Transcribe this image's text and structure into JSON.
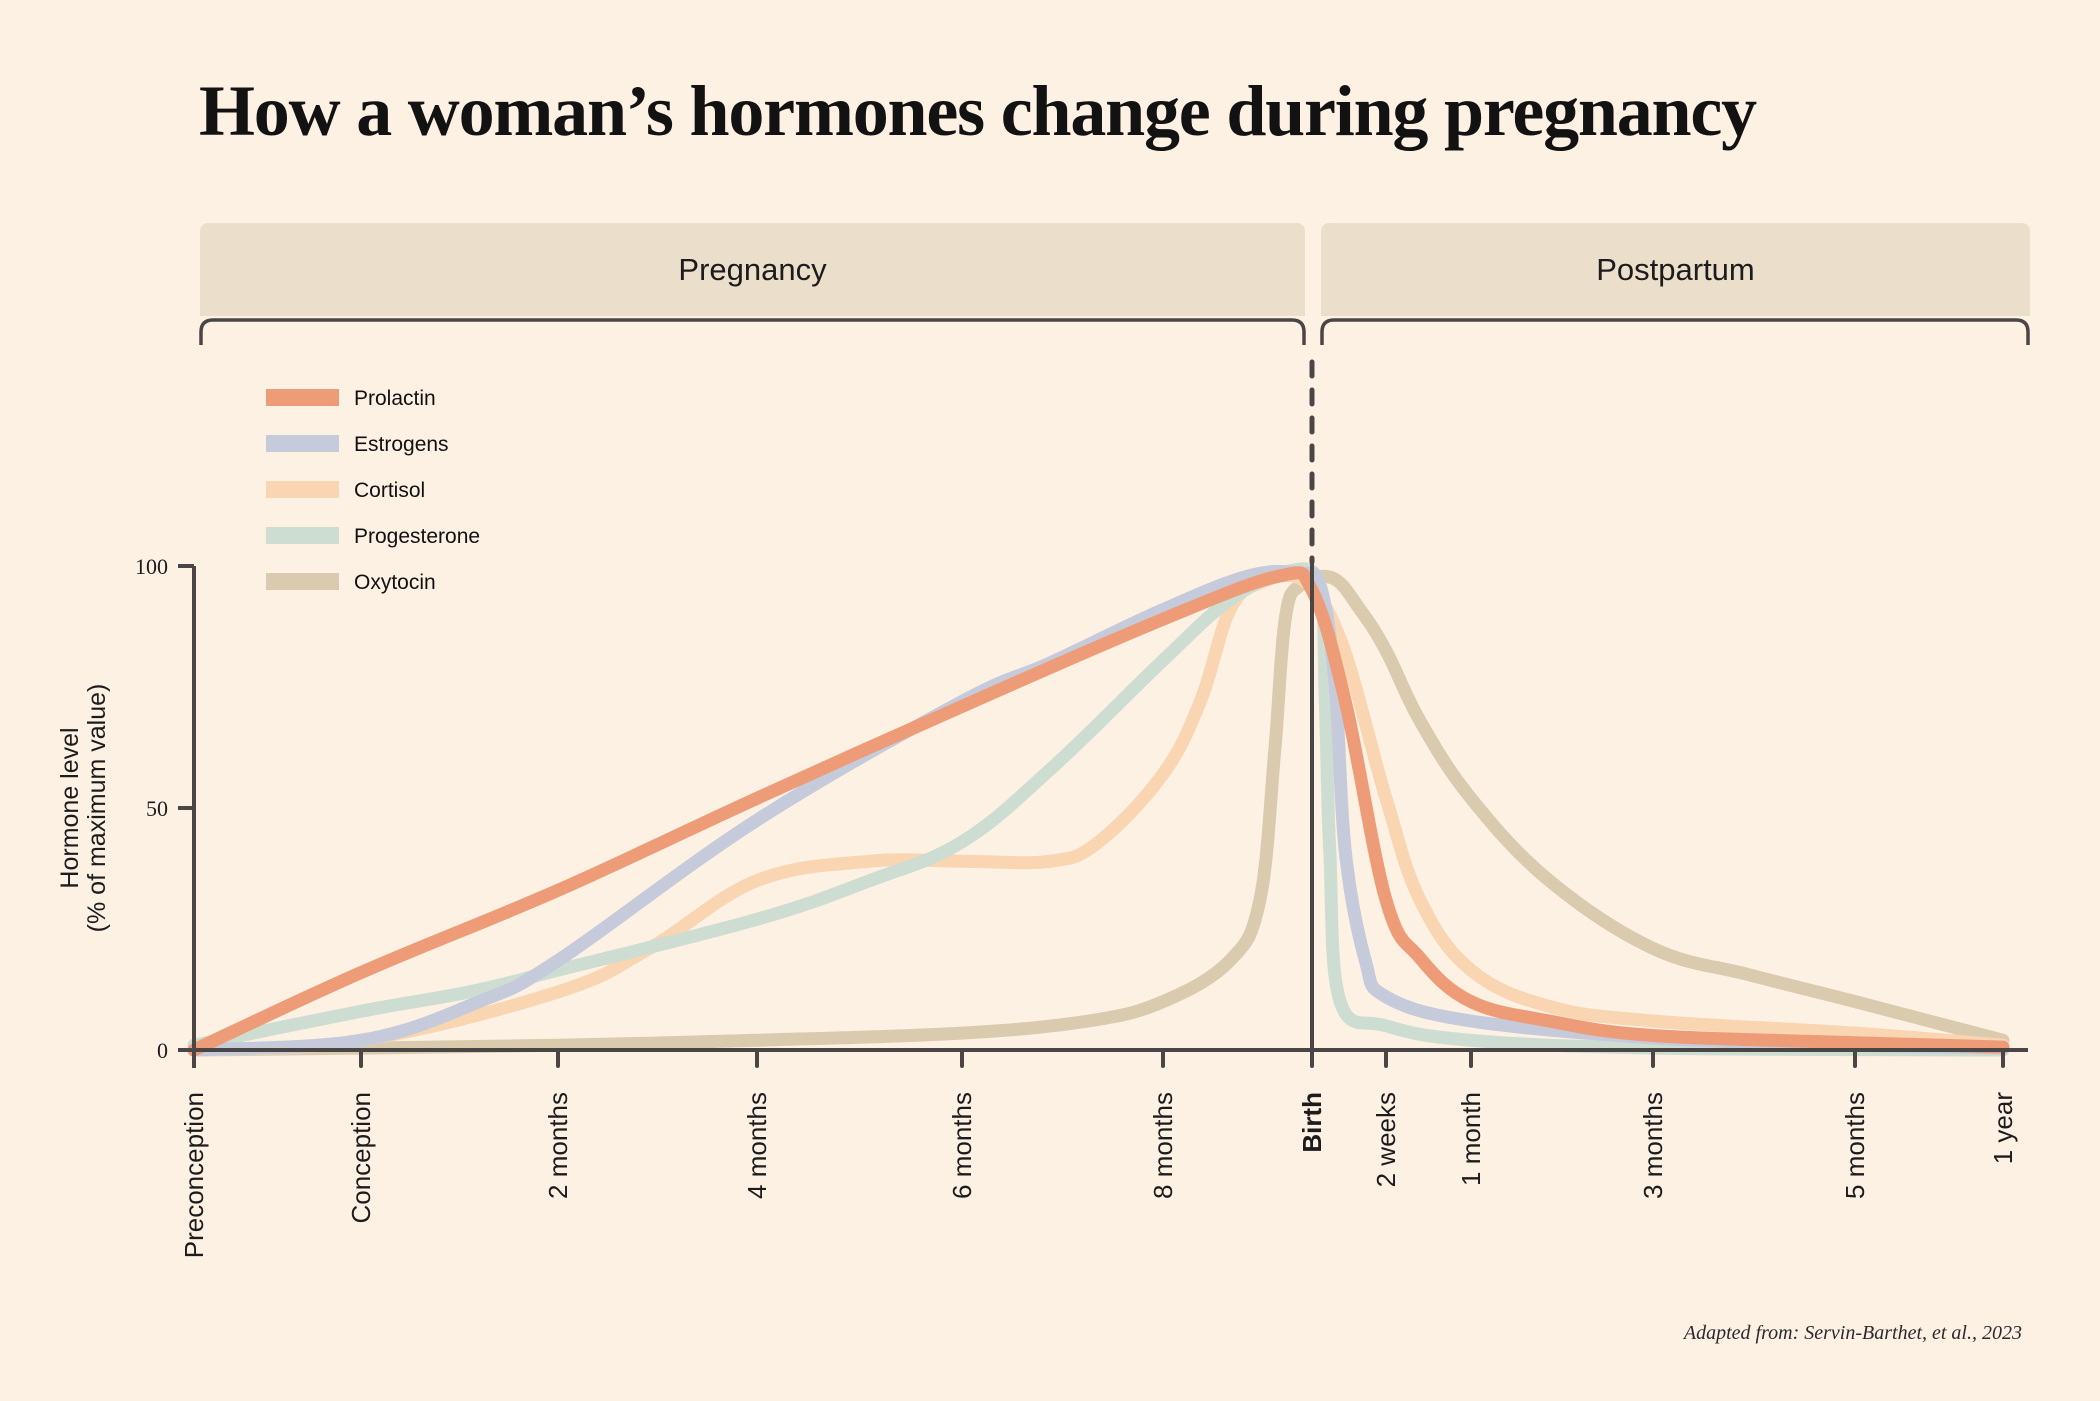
{
  "title": "How a woman’s hormones change during pregnancy",
  "phases": [
    {
      "label": "Pregnancy"
    },
    {
      "label": "Postpartum"
    }
  ],
  "credit": "Adapted from: Servin-Barthet, et al., 2023",
  "colors": {
    "background": "#FDF1E4",
    "phase_box": "#EBDECB",
    "axis": "#4B4646"
  },
  "chart_data": {
    "type": "line",
    "title": "How a woman’s hormones change during pregnancy",
    "xlabel": "",
    "ylabel": "Hormone level",
    "ylabel_sub": "(% of maximum value)",
    "ylim": [
      0,
      100
    ],
    "yticks": [
      0,
      50,
      100
    ],
    "x_units": "timeline tick index (0 = Preconception ... 11 = 1 year)",
    "xticks": [
      {
        "index": 0,
        "label": "Preconception",
        "bold": false
      },
      {
        "index": 1,
        "label": "Conception",
        "bold": false
      },
      {
        "index": 2,
        "label": "2 months",
        "bold": false
      },
      {
        "index": 3,
        "label": "4 months",
        "bold": false
      },
      {
        "index": 4,
        "label": "6 months",
        "bold": false
      },
      {
        "index": 5,
        "label": "8 months",
        "bold": false
      },
      {
        "index": 6,
        "label": "Birth",
        "bold": true
      },
      {
        "index": 7,
        "label": "2 weeks",
        "bold": false
      },
      {
        "index": 8,
        "label": "1 month",
        "bold": false
      },
      {
        "index": 9,
        "label": "3 months",
        "bold": false
      },
      {
        "index": 10,
        "label": "5 months",
        "bold": false
      },
      {
        "index": 11,
        "label": "1 year",
        "bold": false
      }
    ],
    "reference_line": {
      "x": 6,
      "label": "Birth"
    },
    "grid": false,
    "legend_position": "top-left",
    "series": [
      {
        "name": "Prolactin",
        "color": "#EE9C78",
        "points": [
          [
            0,
            0
          ],
          [
            1,
            16
          ],
          [
            2,
            33
          ],
          [
            3,
            52
          ],
          [
            4,
            71
          ],
          [
            5,
            89
          ],
          [
            5.79,
            98
          ],
          [
            6,
            95
          ],
          [
            6.45,
            72
          ],
          [
            7,
            31
          ],
          [
            7.4,
            19
          ],
          [
            8,
            10
          ],
          [
            8.43,
            6
          ],
          [
            9,
            3
          ],
          [
            10,
            1.5
          ],
          [
            11,
            0.6
          ]
        ]
      },
      {
        "name": "Estrogens",
        "color": "#C5CBDB",
        "points": [
          [
            0,
            0
          ],
          [
            1,
            2
          ],
          [
            1.6,
            10
          ],
          [
            2,
            18.5
          ],
          [
            3,
            47.5
          ],
          [
            4,
            72
          ],
          [
            4.44,
            80
          ],
          [
            5,
            91
          ],
          [
            5.58,
            98
          ],
          [
            5.92,
            98.5
          ],
          [
            6.11,
            96
          ],
          [
            6.31,
            76
          ],
          [
            6.45,
            41
          ],
          [
            6.72,
            18.5
          ],
          [
            7,
            11
          ],
          [
            8,
            6
          ],
          [
            9,
            2.5
          ],
          [
            10,
            1
          ],
          [
            11,
            0.4
          ]
        ]
      },
      {
        "name": "Cortisol",
        "color": "#F9D5B2",
        "points": [
          [
            0,
            0
          ],
          [
            1,
            2
          ],
          [
            2,
            12
          ],
          [
            2.46,
            21
          ],
          [
            3,
            35
          ],
          [
            3.55,
            39
          ],
          [
            4,
            39
          ],
          [
            4.44,
            39
          ],
          [
            4.68,
            43
          ],
          [
            5,
            57
          ],
          [
            5.25,
            72
          ],
          [
            5.45,
            91
          ],
          [
            5.65,
            96.5
          ],
          [
            5.92,
            97.5
          ],
          [
            6.38,
            85
          ],
          [
            7,
            52
          ],
          [
            7.4,
            31
          ],
          [
            8,
            16.5
          ],
          [
            8.43,
            9
          ],
          [
            9,
            6
          ],
          [
            10,
            3.5
          ],
          [
            11,
            1
          ]
        ]
      },
      {
        "name": "Progesterone",
        "color": "#CEDDD2",
        "points": [
          [
            0,
            1
          ],
          [
            1,
            8
          ],
          [
            1.55,
            12
          ],
          [
            2,
            16.5
          ],
          [
            3,
            27
          ],
          [
            3.55,
            35
          ],
          [
            4,
            43
          ],
          [
            4.44,
            58
          ],
          [
            5,
            80.5
          ],
          [
            5.45,
            93
          ],
          [
            5.85,
            99
          ],
          [
            6.11,
            96
          ],
          [
            6.18,
            72
          ],
          [
            6.24,
            41
          ],
          [
            6.38,
            10
          ],
          [
            7,
            5
          ],
          [
            8,
            2
          ],
          [
            9,
            0.4
          ],
          [
            11,
            0
          ]
        ]
      },
      {
        "name": "Oxytocin",
        "color": "#DACBAF",
        "points": [
          [
            0,
            0
          ],
          [
            1,
            0.4
          ],
          [
            2,
            1
          ],
          [
            3,
            2
          ],
          [
            4,
            3.5
          ],
          [
            4.63,
            6
          ],
          [
            5,
            10
          ],
          [
            5.45,
            18.5
          ],
          [
            5.65,
            31
          ],
          [
            5.75,
            62
          ],
          [
            5.82,
            89
          ],
          [
            5.92,
            96
          ],
          [
            6.28,
            97.5
          ],
          [
            6.65,
            91
          ],
          [
            7,
            82.5
          ],
          [
            7.4,
            68
          ],
          [
            8,
            52
          ],
          [
            8.43,
            35
          ],
          [
            9,
            21
          ],
          [
            9.48,
            15.5
          ],
          [
            10,
            10
          ],
          [
            11,
            2
          ]
        ]
      }
    ]
  }
}
